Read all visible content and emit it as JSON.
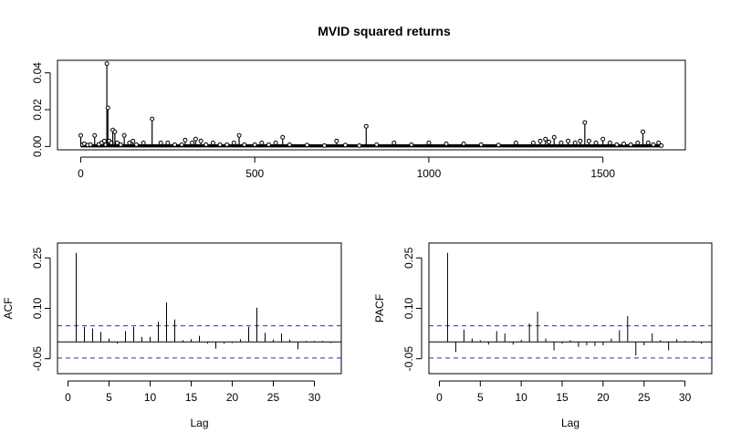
{
  "chart_data": [
    {
      "type": "line",
      "title": "MVID squared returns",
      "xlabel": "",
      "ylabel": "",
      "xlim": [
        0,
        1670
      ],
      "ylim": [
        0,
        0.045
      ],
      "x_ticks": [
        "0",
        "500",
        "1000",
        "1500"
      ],
      "x_tick_values": [
        0,
        500,
        1000,
        1500
      ],
      "y_ticks": [
        "0.00",
        "0.02",
        "0.04"
      ],
      "y_tick_values": [
        0,
        0.02,
        0.04
      ],
      "series": [
        {
          "x": [
            0,
            5,
            10,
            20,
            28,
            40,
            52,
            60,
            68,
            72,
            75,
            78,
            82,
            88,
            92,
            98,
            105,
            115,
            125,
            140,
            150,
            160,
            180,
            205,
            230,
            250,
            270,
            290,
            300,
            320,
            330,
            345,
            360,
            380,
            400,
            420,
            440,
            455,
            470,
            500,
            520,
            540,
            560,
            580,
            600,
            650,
            700,
            735,
            760,
            800,
            820,
            850,
            900,
            950,
            1000,
            1050,
            1100,
            1150,
            1200,
            1250,
            1300,
            1320,
            1335,
            1345,
            1360,
            1380,
            1400,
            1420,
            1435,
            1448,
            1460,
            1480,
            1500,
            1520,
            1540,
            1560,
            1580,
            1600,
            1615,
            1630,
            1645,
            1660,
            1668
          ],
          "y": [
            0.006,
            0.001,
            0.0015,
            0.0008,
            0.001,
            0.006,
            0.0012,
            0.002,
            0.003,
            0.001,
            0.045,
            0.021,
            0.003,
            0.002,
            0.009,
            0.008,
            0.002,
            0.001,
            0.006,
            0.002,
            0.003,
            0.001,
            0.002,
            0.015,
            0.002,
            0.002,
            0.001,
            0.001,
            0.0035,
            0.002,
            0.004,
            0.003,
            0.001,
            0.002,
            0.001,
            0.001,
            0.002,
            0.006,
            0.001,
            0.001,
            0.002,
            0.001,
            0.002,
            0.005,
            0.001,
            0.0008,
            0.0005,
            0.003,
            0.0008,
            0.0005,
            0.011,
            0.001,
            0.002,
            0.001,
            0.002,
            0.0015,
            0.0015,
            0.001,
            0.0008,
            0.002,
            0.002,
            0.003,
            0.004,
            0.0025,
            0.005,
            0.002,
            0.003,
            0.002,
            0.003,
            0.013,
            0.003,
            0.002,
            0.004,
            0.002,
            0.001,
            0.0015,
            0.001,
            0.002,
            0.008,
            0.002,
            0.001,
            0.002,
            0.0005
          ]
        }
      ]
    },
    {
      "type": "bar",
      "title": "",
      "xlabel": "Lag",
      "ylabel": "ACF",
      "xlim": [
        0,
        32
      ],
      "ylim": [
        -0.08,
        0.28
      ],
      "x_ticks": [
        "0",
        "5",
        "10",
        "15",
        "20",
        "25",
        "30"
      ],
      "x_tick_values": [
        0,
        5,
        10,
        15,
        20,
        25,
        30
      ],
      "y_ticks": [
        "-0.05",
        "0.10",
        "0.25"
      ],
      "y_tick_values": [
        -0.05,
        0.1,
        0.25
      ],
      "confidence_bounds": [
        0.048,
        -0.048
      ],
      "lags": [
        1,
        2,
        3,
        4,
        5,
        6,
        7,
        8,
        9,
        10,
        11,
        12,
        13,
        14,
        15,
        16,
        17,
        18,
        19,
        20,
        21,
        22,
        23,
        24,
        25,
        26,
        27,
        28,
        29,
        30,
        31,
        32
      ],
      "values": [
        0.265,
        0.045,
        0.04,
        0.03,
        0.01,
        -0.005,
        0.032,
        0.045,
        0.015,
        0.015,
        0.06,
        0.118,
        0.067,
        0.005,
        0.008,
        0.018,
        -0.005,
        -0.02,
        -0.005,
        -0.003,
        0.008,
        0.045,
        0.102,
        0.027,
        0.007,
        0.025,
        0.007,
        -0.022,
        0.003,
        0.003,
        0.003,
        -0.003
      ]
    },
    {
      "type": "bar",
      "title": "",
      "xlabel": "Lag",
      "ylabel": "PACF",
      "xlim": [
        0,
        32
      ],
      "ylim": [
        -0.08,
        0.28
      ],
      "x_ticks": [
        "0",
        "5",
        "10",
        "15",
        "20",
        "25",
        "30"
      ],
      "x_tick_values": [
        0,
        5,
        10,
        15,
        20,
        25,
        30
      ],
      "y_ticks": [
        "-0.05",
        "0.10",
        "0.25"
      ],
      "y_tick_values": [
        -0.05,
        0.1,
        0.25
      ],
      "confidence_bounds": [
        0.048,
        -0.048
      ],
      "lags": [
        1,
        2,
        3,
        4,
        5,
        6,
        7,
        8,
        9,
        10,
        11,
        12,
        13,
        14,
        15,
        16,
        17,
        18,
        19,
        20,
        21,
        22,
        23,
        24,
        25,
        26,
        27,
        28,
        29,
        30,
        31,
        32
      ],
      "values": [
        0.265,
        -0.03,
        0.037,
        0.01,
        0.005,
        -0.008,
        0.032,
        0.025,
        -0.008,
        0.006,
        0.055,
        0.09,
        0.01,
        -0.025,
        -0.005,
        0.005,
        -0.015,
        -0.01,
        -0.012,
        -0.01,
        0.01,
        0.035,
        0.077,
        -0.04,
        -0.01,
        0.025,
        0.005,
        -0.025,
        0.008,
        0.003,
        0.003,
        -0.005
      ]
    }
  ]
}
